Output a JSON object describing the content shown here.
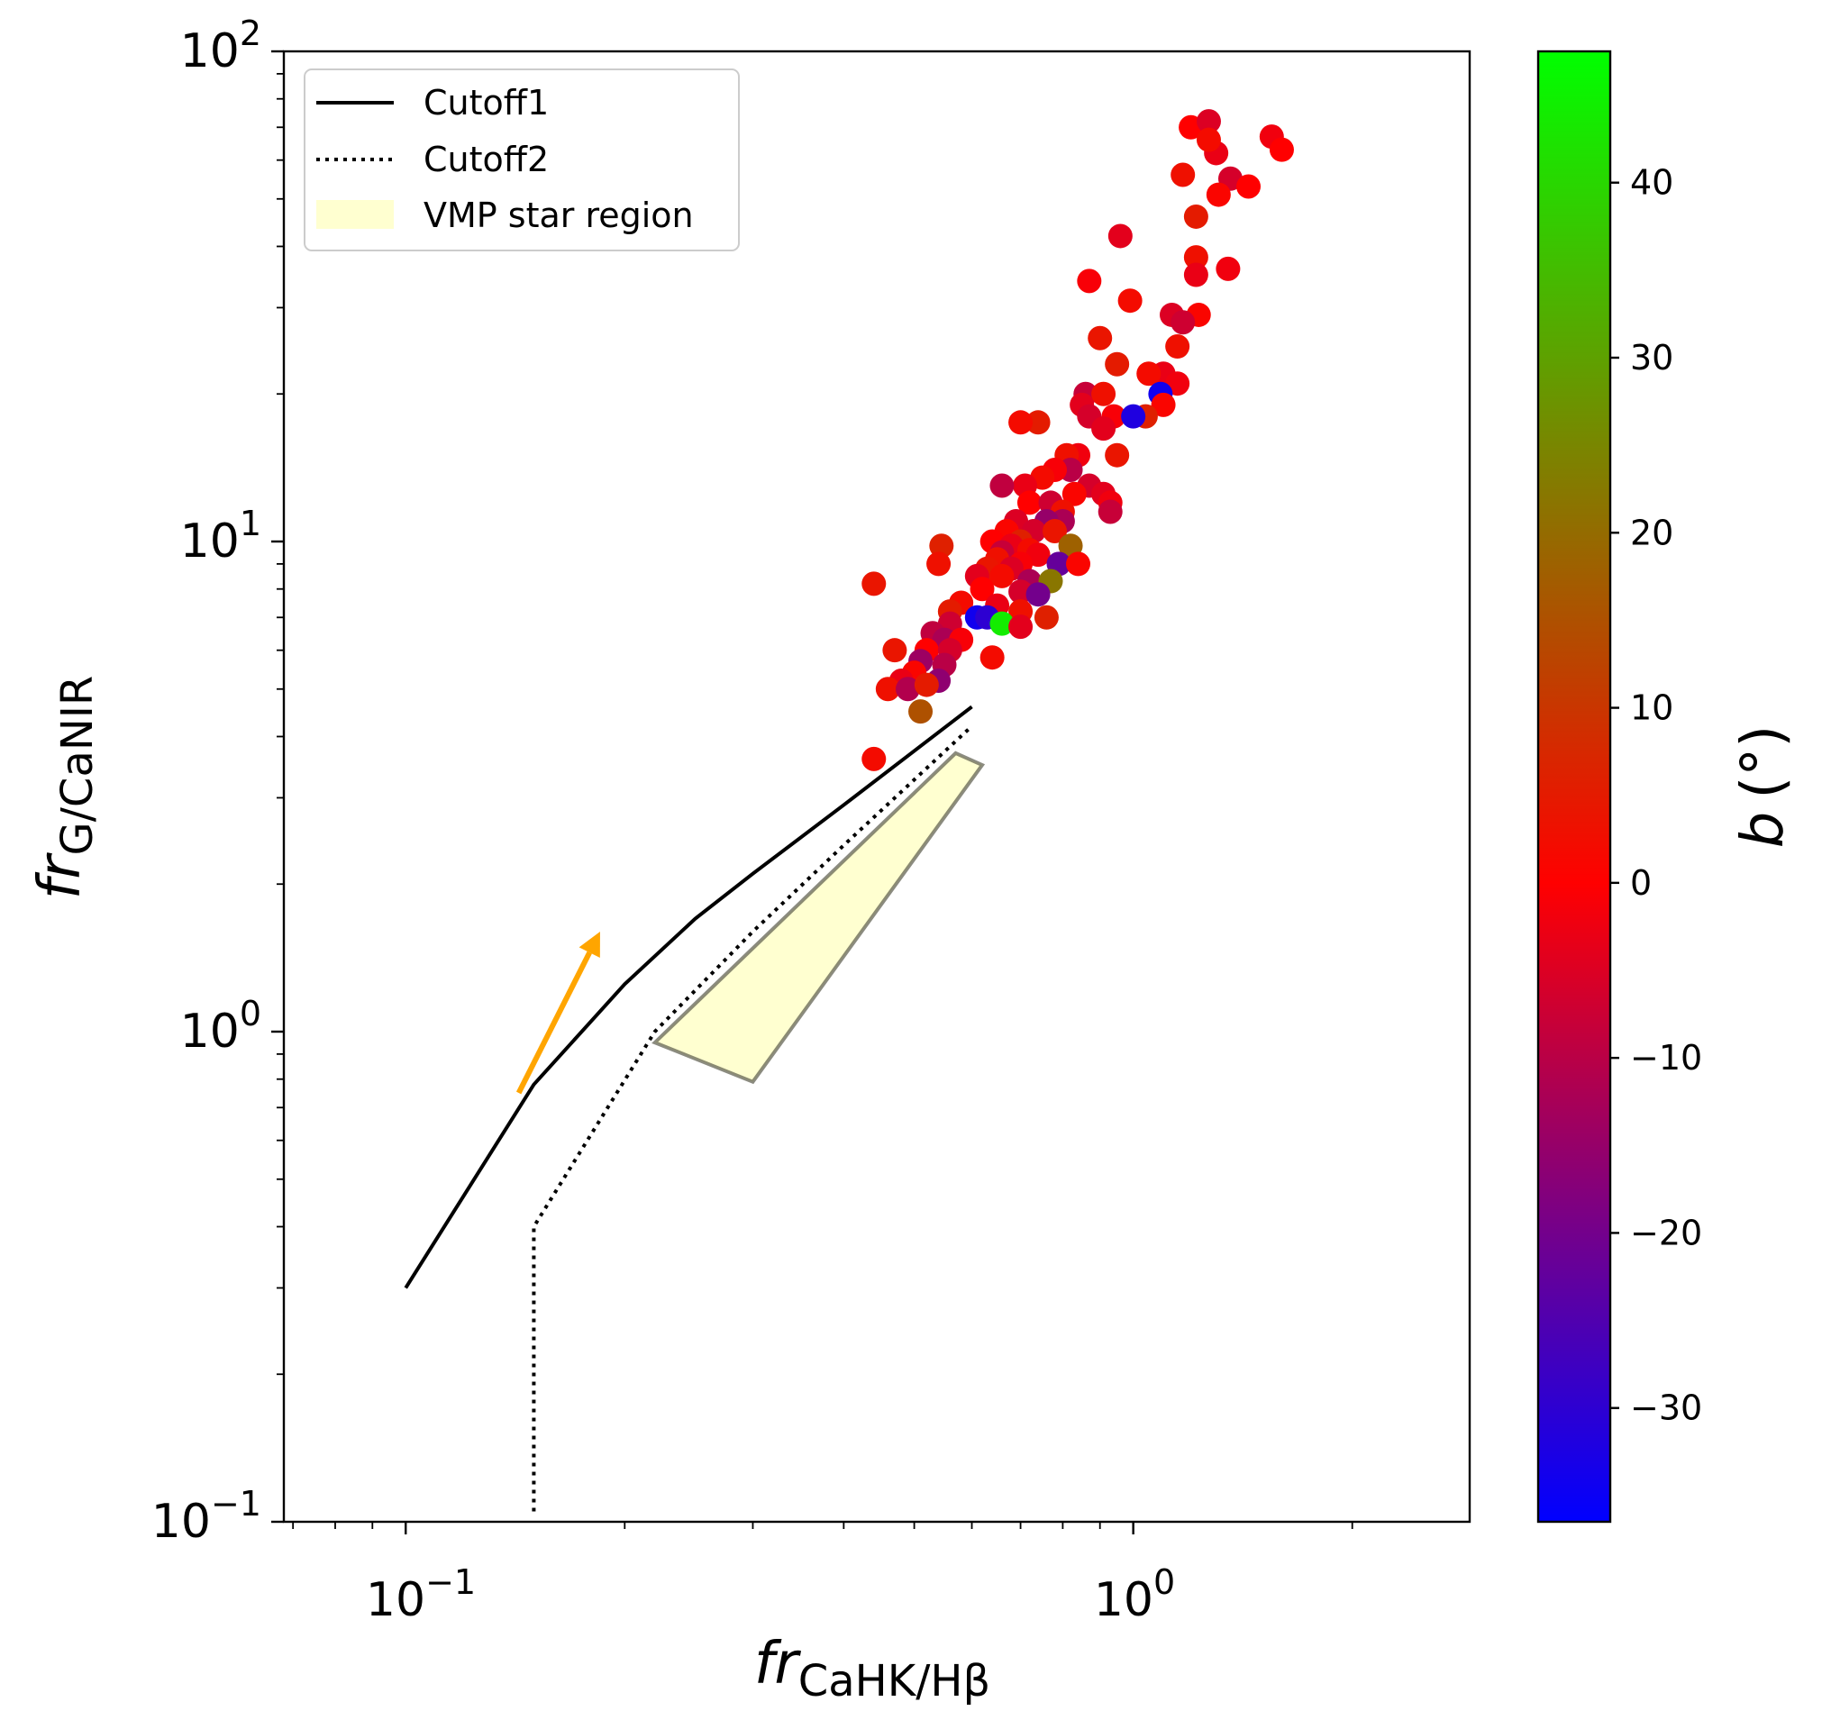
{
  "chart_data": {
    "type": "scatter",
    "xscale": "log",
    "yscale": "log",
    "xlim": [
      0.068,
      2.9
    ],
    "ylim": [
      0.1,
      100
    ],
    "x_ticks": [
      {
        "value": 0.1,
        "base": "10",
        "exp": "−1"
      },
      {
        "value": 1,
        "base": "10",
        "exp": "0"
      }
    ],
    "y_ticks": [
      {
        "value": 0.1,
        "base": "10",
        "exp": "−1"
      },
      {
        "value": 1,
        "base": "10",
        "exp": "0"
      },
      {
        "value": 10,
        "base": "10",
        "exp": "1"
      },
      {
        "value": 100,
        "base": "10",
        "exp": "2"
      }
    ],
    "xlabel": {
      "main": "fr",
      "sub": "CaHK/Hβ"
    },
    "ylabel": {
      "main": "fr",
      "sub": "G/CaNIR"
    },
    "grid": false,
    "legend": {
      "placement": "upper-left",
      "entries": [
        {
          "label": "Cutoff1",
          "style": "solid"
        },
        {
          "label": "Cutoff2",
          "style": "dotted"
        },
        {
          "label": "VMP star region",
          "style": "patch"
        }
      ]
    },
    "colorbar": {
      "label_main": "b",
      "label_unit": "(°)",
      "range": [
        -36.5,
        47.5
      ],
      "ticks": [
        "−30",
        "−20",
        "−10",
        "0",
        "10",
        "20",
        "30",
        "40"
      ],
      "tick_values": [
        -30,
        -20,
        -10,
        0,
        10,
        20,
        30,
        40
      ],
      "colors": [
        "#0000ff",
        "#ff0000",
        "#00ff00"
      ]
    },
    "cutoff1": {
      "x": [
        0.1,
        0.15,
        0.2,
        0.25,
        0.3,
        0.4,
        0.6
      ],
      "y": [
        0.3,
        0.78,
        1.25,
        1.7,
        2.1,
        2.9,
        4.6
      ]
    },
    "cutoff2": {
      "x": [
        0.15,
        0.15,
        0.22,
        0.3,
        0.4,
        0.6
      ],
      "y": [
        0.105,
        0.4,
        1.0,
        1.6,
        2.4,
        4.2
      ]
    },
    "vmp_region": {
      "x": [
        0.22,
        0.3,
        0.62,
        0.57,
        0.22
      ],
      "y": [
        0.95,
        0.79,
        3.5,
        3.7,
        0.95
      ]
    },
    "arrow": {
      "from": [
        0.143,
        0.75
      ],
      "to": [
        0.185,
        1.6
      ],
      "color": "#ffa500"
    },
    "points": [
      {
        "x": 1.2,
        "y": 70,
        "b": 0
      },
      {
        "x": 1.27,
        "y": 72,
        "b": -5
      },
      {
        "x": 1.3,
        "y": 62,
        "b": -3
      },
      {
        "x": 1.27,
        "y": 66,
        "b": 2
      },
      {
        "x": 1.55,
        "y": 67,
        "b": -2
      },
      {
        "x": 1.6,
        "y": 63,
        "b": 0
      },
      {
        "x": 1.17,
        "y": 56,
        "b": 3
      },
      {
        "x": 1.36,
        "y": 55,
        "b": -6
      },
      {
        "x": 1.44,
        "y": 53,
        "b": 0
      },
      {
        "x": 1.31,
        "y": 51,
        "b": 1
      },
      {
        "x": 1.22,
        "y": 46,
        "b": 5
      },
      {
        "x": 0.96,
        "y": 42,
        "b": -4
      },
      {
        "x": 1.22,
        "y": 38,
        "b": 3
      },
      {
        "x": 1.35,
        "y": 36,
        "b": -2
      },
      {
        "x": 1.22,
        "y": 35,
        "b": -3
      },
      {
        "x": 0.87,
        "y": 34,
        "b": -1
      },
      {
        "x": 0.99,
        "y": 31,
        "b": 2
      },
      {
        "x": 1.13,
        "y": 29,
        "b": -5
      },
      {
        "x": 1.23,
        "y": 29,
        "b": 1
      },
      {
        "x": 1.17,
        "y": 28,
        "b": -7
      },
      {
        "x": 0.9,
        "y": 26,
        "b": 4
      },
      {
        "x": 1.15,
        "y": 25,
        "b": 3
      },
      {
        "x": 0.95,
        "y": 23,
        "b": 5
      },
      {
        "x": 1.1,
        "y": 22,
        "b": -3
      },
      {
        "x": 1.05,
        "y": 22,
        "b": 2
      },
      {
        "x": 1.15,
        "y": 21,
        "b": -2
      },
      {
        "x": 0.86,
        "y": 20,
        "b": -8
      },
      {
        "x": 0.91,
        "y": 20,
        "b": 3
      },
      {
        "x": 1.09,
        "y": 20,
        "b": -34
      },
      {
        "x": 0.85,
        "y": 19,
        "b": -4
      },
      {
        "x": 1.1,
        "y": 19,
        "b": 1
      },
      {
        "x": 0.94,
        "y": 18,
        "b": -1
      },
      {
        "x": 0.87,
        "y": 18,
        "b": -6
      },
      {
        "x": 1.04,
        "y": 18,
        "b": 6
      },
      {
        "x": 1.0,
        "y": 18,
        "b": -32
      },
      {
        "x": 0.74,
        "y": 17.5,
        "b": 5
      },
      {
        "x": 0.7,
        "y": 17.5,
        "b": 2
      },
      {
        "x": 0.91,
        "y": 17,
        "b": -4
      },
      {
        "x": 0.95,
        "y": 15,
        "b": 4
      },
      {
        "x": 0.84,
        "y": 15,
        "b": -2
      },
      {
        "x": 0.81,
        "y": 15,
        "b": 3
      },
      {
        "x": 0.82,
        "y": 14,
        "b": -10
      },
      {
        "x": 0.78,
        "y": 14,
        "b": -1
      },
      {
        "x": 0.75,
        "y": 13.5,
        "b": 2
      },
      {
        "x": 0.71,
        "y": 13,
        "b": -3
      },
      {
        "x": 0.66,
        "y": 13,
        "b": -9
      },
      {
        "x": 0.87,
        "y": 13,
        "b": -6
      },
      {
        "x": 0.83,
        "y": 12.5,
        "b": 1
      },
      {
        "x": 0.91,
        "y": 12.5,
        "b": -4
      },
      {
        "x": 0.93,
        "y": 12,
        "b": -2
      },
      {
        "x": 0.72,
        "y": 12,
        "b": 0
      },
      {
        "x": 0.77,
        "y": 12,
        "b": -7
      },
      {
        "x": 0.8,
        "y": 11.5,
        "b": 3
      },
      {
        "x": 0.93,
        "y": 11.5,
        "b": -8
      },
      {
        "x": 0.69,
        "y": 11,
        "b": -5
      },
      {
        "x": 0.8,
        "y": 11,
        "b": -12
      },
      {
        "x": 0.76,
        "y": 11,
        "b": -15
      },
      {
        "x": 0.67,
        "y": 10.5,
        "b": 1
      },
      {
        "x": 0.73,
        "y": 10.5,
        "b": -6
      },
      {
        "x": 0.78,
        "y": 10.5,
        "b": 4
      },
      {
        "x": 0.64,
        "y": 10,
        "b": 0
      },
      {
        "x": 0.7,
        "y": 10,
        "b": 6
      },
      {
        "x": 0.68,
        "y": 9.8,
        "b": -3
      },
      {
        "x": 0.72,
        "y": 9.6,
        "b": 2
      },
      {
        "x": 0.66,
        "y": 9.5,
        "b": -8
      },
      {
        "x": 0.74,
        "y": 9.4,
        "b": -2
      },
      {
        "x": 0.82,
        "y": 9.8,
        "b": 18
      },
      {
        "x": 0.65,
        "y": 9.2,
        "b": 3
      },
      {
        "x": 0.7,
        "y": 9.0,
        "b": -1
      },
      {
        "x": 0.79,
        "y": 9.0,
        "b": -22
      },
      {
        "x": 0.84,
        "y": 9.0,
        "b": 1
      },
      {
        "x": 0.68,
        "y": 8.8,
        "b": -5
      },
      {
        "x": 0.63,
        "y": 8.8,
        "b": 4
      },
      {
        "x": 0.61,
        "y": 8.5,
        "b": -4
      },
      {
        "x": 0.66,
        "y": 8.5,
        "b": 2
      },
      {
        "x": 0.72,
        "y": 8.3,
        "b": -12
      },
      {
        "x": 0.77,
        "y": 8.3,
        "b": 22
      },
      {
        "x": 0.62,
        "y": 8.0,
        "b": 0
      },
      {
        "x": 0.7,
        "y": 7.9,
        "b": -6
      },
      {
        "x": 0.74,
        "y": 7.8,
        "b": -20
      },
      {
        "x": 0.58,
        "y": 7.5,
        "b": 2
      },
      {
        "x": 0.65,
        "y": 7.4,
        "b": -3
      },
      {
        "x": 0.56,
        "y": 7.2,
        "b": 5
      },
      {
        "x": 0.7,
        "y": 7.2,
        "b": 3
      },
      {
        "x": 0.61,
        "y": 7.0,
        "b": -34
      },
      {
        "x": 0.63,
        "y": 7.0,
        "b": -30
      },
      {
        "x": 0.76,
        "y": 7.0,
        "b": 6
      },
      {
        "x": 0.66,
        "y": 6.8,
        "b": 44
      },
      {
        "x": 0.56,
        "y": 6.8,
        "b": -7
      },
      {
        "x": 0.7,
        "y": 6.7,
        "b": -4
      },
      {
        "x": 0.53,
        "y": 6.5,
        "b": -9
      },
      {
        "x": 0.55,
        "y": 6.3,
        "b": -12
      },
      {
        "x": 0.58,
        "y": 6.3,
        "b": -1
      },
      {
        "x": 0.47,
        "y": 6.0,
        "b": 4
      },
      {
        "x": 0.52,
        "y": 6.0,
        "b": 0
      },
      {
        "x": 0.56,
        "y": 6.0,
        "b": -6
      },
      {
        "x": 0.51,
        "y": 5.7,
        "b": -14
      },
      {
        "x": 0.55,
        "y": 5.6,
        "b": -10
      },
      {
        "x": 0.64,
        "y": 5.8,
        "b": 2
      },
      {
        "x": 0.5,
        "y": 5.4,
        "b": 1
      },
      {
        "x": 0.54,
        "y": 5.2,
        "b": -16
      },
      {
        "x": 0.48,
        "y": 5.2,
        "b": -3
      },
      {
        "x": 0.46,
        "y": 5.0,
        "b": 3
      },
      {
        "x": 0.49,
        "y": 5.0,
        "b": -11
      },
      {
        "x": 0.52,
        "y": 5.1,
        "b": 5
      },
      {
        "x": 0.51,
        "y": 4.5,
        "b": 15
      },
      {
        "x": 0.44,
        "y": 3.6,
        "b": 2
      },
      {
        "x": 0.44,
        "y": 8.2,
        "b": 4
      },
      {
        "x": 0.545,
        "y": 9.8,
        "b": 6
      },
      {
        "x": 0.54,
        "y": 9.0,
        "b": 3
      }
    ]
  }
}
